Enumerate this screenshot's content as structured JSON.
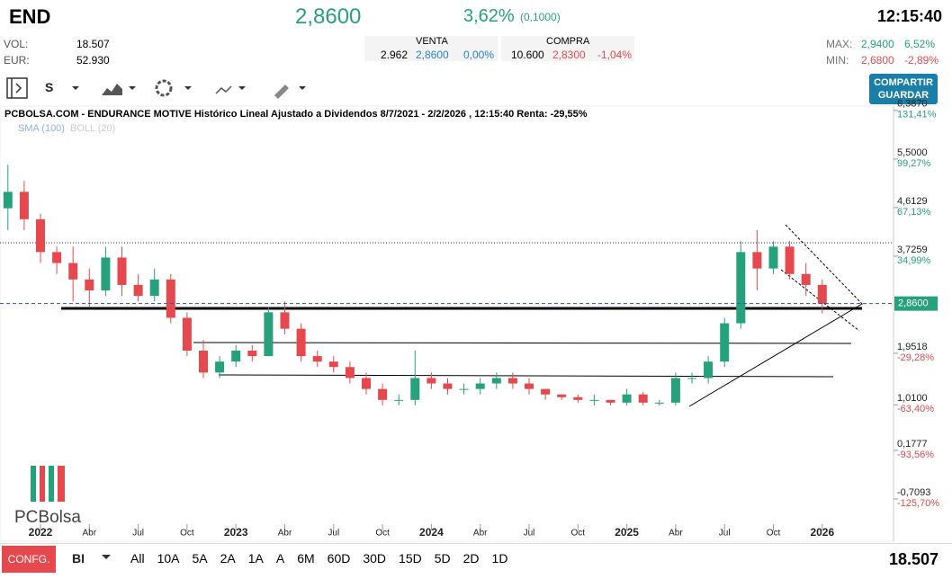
{
  "header": {
    "ticker": "END",
    "price": "2,8600",
    "change_pct": "3,62%",
    "change_abs": "(0,1000)",
    "time": "12:15:40",
    "vol_label": "VOL:",
    "vol": "18.507",
    "eur_label": "EUR:",
    "eur": "52.930",
    "venta_label": "VENTA",
    "venta_qty": "2.962",
    "venta_price": "2,8600",
    "venta_pct": "0,00%",
    "compra_label": "COMPRA",
    "compra_qty": "10.600",
    "compra_price": "2,8300",
    "compra_pct": "-1,04%",
    "max_label": "MAX:",
    "max": "2,9400",
    "max_pct": "6,52%",
    "min_label": "MIN:",
    "min": "2,6800",
    "min_pct": "-2,89%"
  },
  "toolbar": {
    "period": "S",
    "share_button": "COMPARTIR GUARDAR"
  },
  "footer": {
    "config": "CONFG.",
    "mode": "BI",
    "ranges": [
      "All",
      "10A",
      "5A",
      "2A",
      "1A",
      "A",
      "6M",
      "60D",
      "30D",
      "15D",
      "5D",
      "2D",
      "1D"
    ],
    "volume": "18.507"
  },
  "chart_data": {
    "type": "candlestick",
    "title": "PCBOLSA.COM - ENDURANCE MOTIVE Histórico Lineal Ajustado a Dividendos 8/7/2021 - 2/2/2026 , 12:15:40 Renta: -29,55%",
    "indicators": [
      "SMA (100)",
      "BOLL (20)"
    ],
    "logo": "PCBolsa",
    "last_label": "2,8600",
    "last": 2.86,
    "ylim": [
      -1.317,
      6.45
    ],
    "yticks": [
      {
        "value": 6.387,
        "label": "6,3870"
      },
      {
        "value": 5.5,
        "label": "5,5000"
      },
      {
        "value": 4.6129,
        "label": "4,6129"
      },
      {
        "value": 3.7259,
        "label": "3,7259"
      },
      {
        "value": 1.9518,
        "label": "1,9518"
      },
      {
        "value": 1.01,
        "label": "1,0100"
      },
      {
        "value": 0.1777,
        "label": "0,1777"
      },
      {
        "value": -0.7093,
        "label": "-0,7093"
      }
    ],
    "ytick_pct": [
      "131,41%",
      "99,27%",
      "67,13%",
      "34,99%",
      "-29,28%",
      "-63,40%",
      "-93,56%",
      "-125,70%"
    ],
    "xticks": [
      {
        "value": "2022-01",
        "label": "2022"
      },
      {
        "value": "2022-04",
        "label": "Abr"
      },
      {
        "value": "2022-07",
        "label": "Jul"
      },
      {
        "value": "2022-10",
        "label": "Oct"
      },
      {
        "value": "2023-01",
        "label": "2023"
      },
      {
        "value": "2023-04",
        "label": "Abr"
      },
      {
        "value": "2023-07",
        "label": "Jul"
      },
      {
        "value": "2023-10",
        "label": "Oct"
      },
      {
        "value": "2024-01",
        "label": "2024"
      },
      {
        "value": "2024-04",
        "label": "Abr"
      },
      {
        "value": "2024-07",
        "label": "Jul"
      },
      {
        "value": "2024-10",
        "label": "Oct"
      },
      {
        "value": "2025-01",
        "label": "2025"
      },
      {
        "value": "2025-04",
        "label": "Abr"
      },
      {
        "value": "2025-07",
        "label": "Jul"
      },
      {
        "value": "2025-10",
        "label": "Oct"
      },
      {
        "value": "2026-01",
        "label": "2026"
      }
    ],
    "x": [
      "2021-11",
      "2021-12",
      "2022-01",
      "2022-02",
      "2022-03",
      "2022-04",
      "2022-05",
      "2022-06",
      "2022-07",
      "2022-08",
      "2022-09",
      "2022-10",
      "2022-11",
      "2022-12",
      "2023-01",
      "2023-02",
      "2023-03",
      "2023-04",
      "2023-05",
      "2023-06",
      "2023-07",
      "2023-08",
      "2023-09",
      "2023-10",
      "2023-11",
      "2023-12",
      "2024-01",
      "2024-02",
      "2024-03",
      "2024-04",
      "2024-05",
      "2024-06",
      "2024-07",
      "2024-08",
      "2024-09",
      "2024-10",
      "2024-11",
      "2024-12",
      "2025-01",
      "2025-02",
      "2025-03",
      "2025-04",
      "2025-05",
      "2025-06",
      "2025-07",
      "2025-08",
      "2025-09",
      "2025-10",
      "2025-11",
      "2025-12",
      "2026-01"
    ],
    "open": [
      4.6,
      4.9,
      4.4,
      3.8,
      3.6,
      3.3,
      3.1,
      3.7,
      3.2,
      3.0,
      3.3,
      2.6,
      2.0,
      1.6,
      1.8,
      2.0,
      1.9,
      2.7,
      2.4,
      1.9,
      1.8,
      1.7,
      1.5,
      1.3,
      1.1,
      1.1,
      1.5,
      1.4,
      1.3,
      1.3,
      1.4,
      1.5,
      1.4,
      1.3,
      1.2,
      1.15,
      1.1,
      1.1,
      1.05,
      1.2,
      1.05,
      1.05,
      1.5,
      1.5,
      1.8,
      2.5,
      3.8,
      3.5,
      3.9,
      3.4,
      3.2
    ],
    "high": [
      5.4,
      5.1,
      4.5,
      3.9,
      3.9,
      3.5,
      3.9,
      3.9,
      3.4,
      3.5,
      3.4,
      2.7,
      2.2,
      1.9,
      2.1,
      2.1,
      2.8,
      2.9,
      2.5,
      2.0,
      1.9,
      1.8,
      1.6,
      1.4,
      1.2,
      2.0,
      1.6,
      1.5,
      1.4,
      1.5,
      1.6,
      1.6,
      1.5,
      1.3,
      1.2,
      1.2,
      1.2,
      1.1,
      1.3,
      1.25,
      1.1,
      1.6,
      1.6,
      1.9,
      2.6,
      4.0,
      4.2,
      4.0,
      4.0,
      3.6,
      3.3
    ],
    "low": [
      4.2,
      4.2,
      3.6,
      3.4,
      2.9,
      2.8,
      3.0,
      3.0,
      2.9,
      2.9,
      2.5,
      1.9,
      1.5,
      1.5,
      1.7,
      1.8,
      1.9,
      2.3,
      1.8,
      1.7,
      1.6,
      1.4,
      1.2,
      1.0,
      1.0,
      1.0,
      1.3,
      1.2,
      1.2,
      1.2,
      1.3,
      1.3,
      1.2,
      1.1,
      1.1,
      1.05,
      1.0,
      1.0,
      1.0,
      1.0,
      1.0,
      1.0,
      1.4,
      1.4,
      1.7,
      2.4,
      3.1,
      3.4,
      3.3,
      3.0,
      2.68
    ],
    "close": [
      4.9,
      4.4,
      3.8,
      3.6,
      3.3,
      3.1,
      3.7,
      3.2,
      3.0,
      3.3,
      2.6,
      2.0,
      1.6,
      1.8,
      2.0,
      1.9,
      2.7,
      2.4,
      1.9,
      1.8,
      1.7,
      1.5,
      1.3,
      1.1,
      1.1,
      1.5,
      1.4,
      1.3,
      1.3,
      1.4,
      1.5,
      1.4,
      1.3,
      1.2,
      1.15,
      1.1,
      1.1,
      1.05,
      1.2,
      1.05,
      1.05,
      1.5,
      1.5,
      1.8,
      2.5,
      3.8,
      3.5,
      3.9,
      3.4,
      3.2,
      2.86
    ],
    "up_color": "#26a17b",
    "down_color": "#e5484d"
  }
}
